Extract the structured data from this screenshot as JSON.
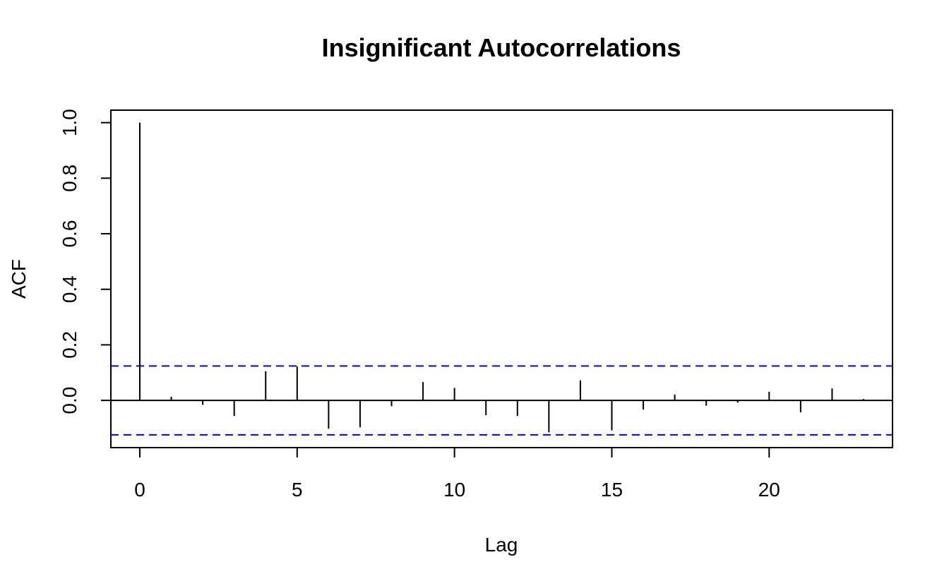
{
  "chart_data": {
    "type": "bar",
    "title": "Insignificant Autocorrelations",
    "xlabel": "Lag",
    "ylabel": "ACF",
    "x": [
      0,
      1,
      2,
      3,
      4,
      5,
      6,
      7,
      8,
      9,
      10,
      11,
      12,
      13,
      14,
      15,
      16,
      17,
      18,
      19,
      20,
      21,
      22,
      23
    ],
    "values": [
      1.0,
      0.013,
      -0.016,
      -0.056,
      0.105,
      0.122,
      -0.102,
      -0.097,
      -0.021,
      0.066,
      0.045,
      -0.053,
      -0.056,
      -0.115,
      0.072,
      -0.108,
      -0.033,
      0.021,
      -0.019,
      -0.008,
      0.031,
      -0.043,
      0.043,
      0.005
    ],
    "confidence_band": {
      "upper": 0.124,
      "lower": -0.124,
      "color": "#0000ff",
      "style": "dashed"
    },
    "xlim": [
      -0.92,
      23.92
    ],
    "ylim": [
      -0.17,
      1.045
    ],
    "xticks": [
      0,
      5,
      10,
      15,
      20
    ],
    "xtick_labels": [
      "0",
      "5",
      "10",
      "15",
      "20"
    ],
    "yticks": [
      0.0,
      0.2,
      0.4,
      0.6,
      0.8,
      1.0
    ],
    "ytick_labels": [
      "0.0",
      "0.2",
      "0.4",
      "0.6",
      "0.8",
      "1.0"
    ],
    "grid": false,
    "zero_line": true
  }
}
